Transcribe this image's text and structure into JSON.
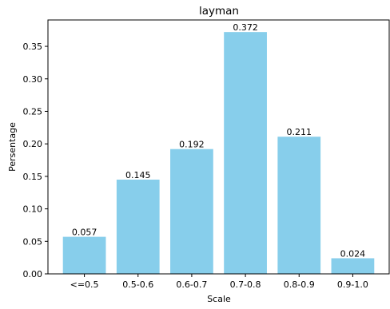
{
  "chart_data": {
    "type": "bar",
    "title": "layman",
    "xlabel": "Scale",
    "ylabel": "Persentage",
    "categories": [
      "<=0.5",
      "0.5-0.6",
      "0.6-0.7",
      "0.7-0.8",
      "0.8-0.9",
      "0.9-1.0"
    ],
    "values": [
      0.057,
      0.145,
      0.192,
      0.372,
      0.211,
      0.024
    ],
    "data_labels": [
      "0.057",
      "0.145",
      "0.192",
      "0.372",
      "0.211",
      "0.024"
    ],
    "yticks": [
      0.0,
      0.05,
      0.1,
      0.15,
      0.2,
      0.25,
      0.3,
      0.35
    ],
    "ytick_labels": [
      "0.00",
      "0.05",
      "0.10",
      "0.15",
      "0.20",
      "0.25",
      "0.30",
      "0.35"
    ],
    "ylim": [
      0,
      0.3906
    ],
    "grid": false,
    "bar_color": "#87ceeb"
  }
}
